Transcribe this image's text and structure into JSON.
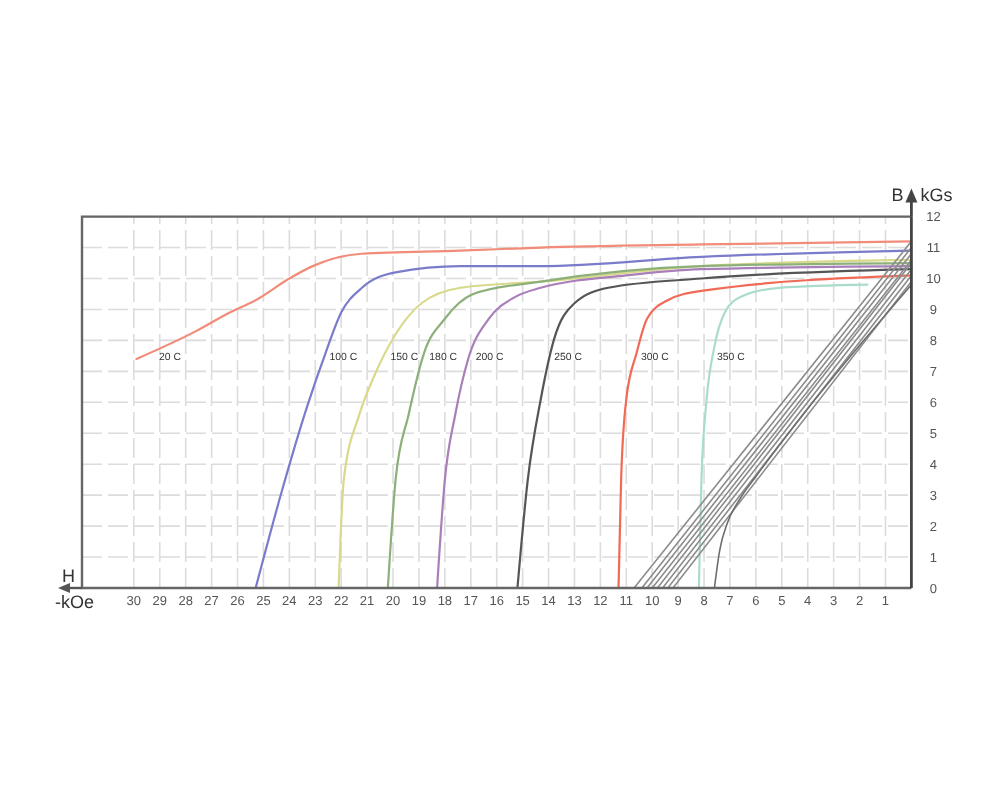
{
  "chart_data": {
    "type": "line",
    "xlabel": "H -kOe",
    "ylabel": "B kGs",
    "xlim": [
      32,
      0
    ],
    "xticks": [
      1,
      2,
      3,
      4,
      5,
      6,
      7,
      8,
      9,
      10,
      11,
      12,
      13,
      14,
      15,
      16,
      17,
      18,
      19,
      20,
      21,
      22,
      23,
      24,
      25,
      26,
      27,
      28,
      29,
      30
    ],
    "ylim": [
      0,
      12
    ],
    "yticks": [
      0,
      1,
      2,
      3,
      4,
      5,
      6,
      7,
      8,
      9,
      10,
      11,
      12
    ],
    "grid": true,
    "line_style": "solid",
    "series": [
      {
        "name": "20 C",
        "color": "#f28c7a",
        "x": [
          29.9,
          27.6,
          26.3,
          25.3,
          24.0,
          23.1,
          21.2,
          17.4,
          14.3,
          8.1,
          0
        ],
        "values": [
          7.4,
          8.3,
          8.9,
          9.3,
          10.0,
          10.4,
          10.8,
          10.9,
          11.0,
          11.1,
          11.2
        ]
      },
      {
        "name": "100 C",
        "color": "#7b7bcc",
        "x": [
          25.3,
          24.3,
          23.3,
          22.6,
          22.0,
          21.2,
          19.9,
          17.4,
          14.3,
          8.1,
          0
        ],
        "values": [
          0,
          3.1,
          5.9,
          7.6,
          8.9,
          9.7,
          10.2,
          10.4,
          10.4,
          10.7,
          10.9
        ]
      },
      {
        "name": "150 C",
        "color": "#d9d98c",
        "x": [
          22.1,
          21.9,
          21.3,
          20.7,
          19.9,
          18.9,
          17.4,
          14.3,
          8.1,
          0
        ],
        "values": [
          0,
          3.5,
          5.6,
          6.9,
          8.2,
          9.2,
          9.7,
          9.9,
          10.4,
          10.6
        ]
      },
      {
        "name": "180 C",
        "color": "#8db07a",
        "x": [
          20.2,
          19.9,
          19.4,
          18.8,
          18.0,
          16.9,
          14.3,
          8.1,
          0
        ],
        "values": [
          0,
          3.5,
          5.6,
          7.6,
          8.7,
          9.5,
          9.9,
          10.4,
          10.5
        ]
      },
      {
        "name": "200 C",
        "color": "#a97fba",
        "x": [
          18.3,
          18.0,
          17.6,
          17.1,
          16.3,
          15.3,
          14.3,
          11.0,
          8.1,
          0
        ],
        "values": [
          0,
          3.5,
          5.6,
          7.4,
          8.7,
          9.4,
          9.7,
          10.1,
          10.3,
          10.4
        ]
      },
      {
        "name": "250 C",
        "color": "#555555",
        "x": [
          15.2,
          14.8,
          14.3,
          13.8,
          13.0,
          11.7,
          8.1,
          0
        ],
        "values": [
          0,
          3.5,
          6.1,
          8.0,
          9.2,
          9.7,
          10.0,
          10.3
        ]
      },
      {
        "name": "300 C",
        "color": "#f06a55",
        "x": [
          11.3,
          11.2,
          11.0,
          10.6,
          10.2,
          9.4,
          8.1,
          0
        ],
        "values": [
          0,
          3.5,
          6.1,
          7.6,
          8.7,
          9.3,
          9.6,
          10.1
        ]
      },
      {
        "name": "350 C",
        "color": "#a9dccd",
        "x": [
          8.2,
          8.1,
          7.9,
          7.6,
          7.2,
          6.6,
          5.1,
          1.7
        ],
        "values": [
          0,
          3.5,
          6.1,
          7.8,
          8.9,
          9.4,
          9.7,
          9.8
        ]
      },
      {
        "color": "#8c8c8c",
        "x": [
          10.7,
          0
        ],
        "values": [
          0,
          11.2
        ]
      },
      {
        "color": "#8c8c8c",
        "x": [
          10.4,
          0
        ],
        "values": [
          0,
          11.0
        ]
      },
      {
        "color": "#8c8c8c",
        "x": [
          10.2,
          0
        ],
        "values": [
          0,
          10.8
        ]
      },
      {
        "color": "#8c8c8c",
        "x": [
          10.0,
          0
        ],
        "values": [
          0,
          10.6
        ]
      },
      {
        "color": "#8c8c8c",
        "x": [
          9.8,
          0
        ],
        "values": [
          0,
          10.5
        ]
      },
      {
        "color": "#8c8c8c",
        "x": [
          9.6,
          0
        ],
        "values": [
          0,
          10.3
        ]
      },
      {
        "color": "#8c8c8c",
        "x": [
          9.4,
          0
        ],
        "values": [
          0,
          10.1
        ]
      },
      {
        "color": "#8c8c8c",
        "x": [
          9.2,
          0
        ],
        "values": [
          0,
          9.9
        ]
      },
      {
        "color": "#6e6e6e",
        "x": [
          7.6,
          7.4,
          7.1,
          6.6,
          6.0,
          0
        ],
        "values": [
          0,
          1.2,
          2.1,
          2.9,
          3.6,
          9.8
        ]
      }
    ]
  }
}
